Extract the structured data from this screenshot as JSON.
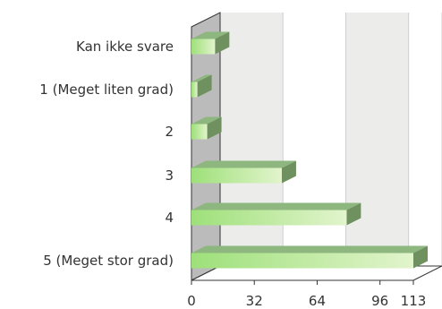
{
  "chart_data": {
    "type": "bar",
    "orientation": "horizontal",
    "style": "3d",
    "categories": [
      "Kan ikke svare",
      "1 (Meget liten grad)",
      "2",
      "3",
      "4",
      "5 (Meget stor grad)"
    ],
    "values": [
      12,
      3,
      8,
      46,
      79,
      113
    ],
    "xlim": [
      0,
      113
    ],
    "xticks": [
      0,
      32,
      64,
      96,
      113
    ],
    "tick_labels": [
      "0",
      "32",
      "64",
      "96",
      "113"
    ],
    "grid": true,
    "legend": "none",
    "colors": {
      "bar_front_light": "#e2f4cc",
      "bar_front_dark": "#9ee07a",
      "bar_top": "#8eb67f",
      "bar_side": "#6f9160",
      "wall_left": "#bbbbbb",
      "plot_band": "#ececea",
      "plot_back": "#ffffff"
    }
  }
}
